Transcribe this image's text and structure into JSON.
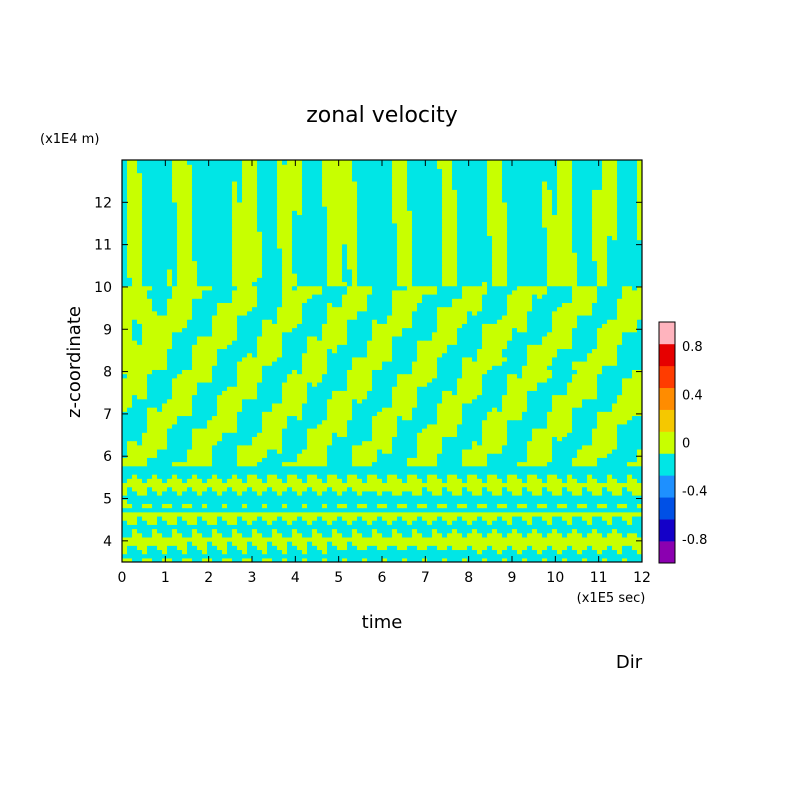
{
  "chart_data": {
    "type": "heatmap",
    "title": "zonal velocity",
    "xlabel": "time",
    "ylabel": "z-coordinate",
    "x_unit": "(x1E5 sec)",
    "y_unit": "(x1E4 m)",
    "footer_label": "Dir",
    "xlim": [
      0,
      12
    ],
    "ylim": [
      3.5,
      13
    ],
    "x_ticks": [
      "0",
      "1",
      "2",
      "3",
      "4",
      "5",
      "6",
      "7",
      "8",
      "9",
      "10",
      "11",
      "12"
    ],
    "y_ticks": [
      "4",
      "5",
      "6",
      "7",
      "8",
      "9",
      "10",
      "11",
      "12"
    ],
    "colorbar": {
      "levels": [
        -1.0,
        -0.8,
        -0.6,
        -0.4,
        -0.2,
        0.0,
        0.2,
        0.4,
        0.6,
        0.8,
        1.0
      ],
      "colors": [
        "#8b00b0",
        "#1400c8",
        "#0050e6",
        "#1e90ff",
        "#00e6e6",
        "#c8ff00",
        "#f5c800",
        "#ff8c00",
        "#ff3c00",
        "#e60000",
        "#ffb4be"
      ],
      "tick_labels": [
        "-0.8",
        "-0.4",
        "0",
        "0.4",
        "0.8"
      ],
      "tick_values": [
        -0.8,
        -0.4,
        0,
        0.4,
        0.8
      ]
    },
    "values_summary": "Field takes values between about -0.2 and 0.2 throughout: alternating bands of slightly negative (cyan) and slightly positive (yellow-green) zonal velocity, with diagonal stripes rising from z≈6 to z≈9.5 over time and thin horizontal layers near z≈4.2, 5.2 and 5.7."
  }
}
